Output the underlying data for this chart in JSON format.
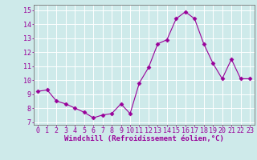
{
  "x": [
    0,
    1,
    2,
    3,
    4,
    5,
    6,
    7,
    8,
    9,
    10,
    11,
    12,
    13,
    14,
    15,
    16,
    17,
    18,
    19,
    20,
    21,
    22,
    23
  ],
  "y": [
    9.2,
    9.3,
    8.5,
    8.3,
    8.0,
    7.7,
    7.3,
    7.5,
    7.6,
    8.3,
    7.6,
    9.8,
    10.9,
    12.6,
    12.9,
    14.4,
    14.9,
    14.4,
    12.6,
    11.2,
    10.1,
    11.5,
    10.1,
    10.1
  ],
  "line_color": "#990099",
  "marker": "D",
  "marker_size": 2.5,
  "bg_color": "#ceeaea",
  "grid_color": "#ffffff",
  "xlabel": "Windchill (Refroidissement éolien,°C)",
  "ylabel_ticks": [
    7,
    8,
    9,
    10,
    11,
    12,
    13,
    14,
    15
  ],
  "ylim": [
    6.8,
    15.4
  ],
  "xlim": [
    -0.5,
    23.5
  ],
  "xlabel_fontsize": 6.5,
  "tick_fontsize": 6.0,
  "tick_color": "#990099",
  "axis_color": "#990099",
  "spine_color": "#777777"
}
